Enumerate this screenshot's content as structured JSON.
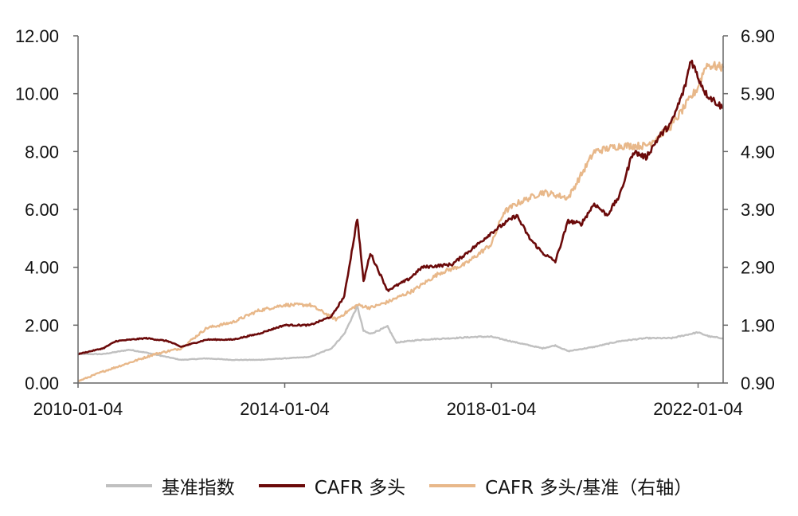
{
  "chart_data": {
    "type": "line",
    "x_range": [
      "2010-01-04",
      "2022-06-30"
    ],
    "x_ticks": [
      "2010-01-04",
      "2014-01-04",
      "2018-01-04",
      "2022-01-04"
    ],
    "y_left": {
      "ticks": [
        "0.00",
        "2.00",
        "4.00",
        "6.00",
        "8.00",
        "10.00",
        "12.00"
      ],
      "ylim": [
        0,
        12
      ]
    },
    "y_right": {
      "ticks": [
        "0.90",
        "1.90",
        "2.90",
        "3.90",
        "4.90",
        "5.90",
        "6.90"
      ],
      "ylim": [
        0.9,
        6.9
      ]
    },
    "grid": false,
    "legend_position": "bottom",
    "series": [
      {
        "name": "基准指数",
        "color": "#c0c0c0",
        "axis": "left",
        "points": [
          [
            "2010-01-04",
            1.0
          ],
          [
            "2010-07-01",
            1.0
          ],
          [
            "2011-01-01",
            1.15
          ],
          [
            "2011-05-01",
            1.05
          ],
          [
            "2012-01-01",
            0.8
          ],
          [
            "2012-07-01",
            0.85
          ],
          [
            "2013-01-01",
            0.8
          ],
          [
            "2013-07-01",
            0.8
          ],
          [
            "2014-01-01",
            0.85
          ],
          [
            "2014-07-01",
            0.9
          ],
          [
            "2014-12-01",
            1.2
          ],
          [
            "2015-03-01",
            1.7
          ],
          [
            "2015-06-01",
            2.65
          ],
          [
            "2015-07-15",
            1.8
          ],
          [
            "2015-09-01",
            1.7
          ],
          [
            "2016-01-01",
            1.95
          ],
          [
            "2016-03-01",
            1.4
          ],
          [
            "2016-09-01",
            1.5
          ],
          [
            "2017-04-01",
            1.55
          ],
          [
            "2017-10-01",
            1.6
          ],
          [
            "2018-01-04",
            1.6
          ],
          [
            "2018-07-01",
            1.4
          ],
          [
            "2018-12-31",
            1.2
          ],
          [
            "2019-04-01",
            1.3
          ],
          [
            "2019-07-01",
            1.1
          ],
          [
            "2020-01-01",
            1.25
          ],
          [
            "2020-07-01",
            1.45
          ],
          [
            "2021-01-01",
            1.55
          ],
          [
            "2021-07-01",
            1.55
          ],
          [
            "2021-12-31",
            1.75
          ],
          [
            "2022-04-01",
            1.6
          ],
          [
            "2022-06-30",
            1.55
          ]
        ]
      },
      {
        "name": "CAFR 多头",
        "color": "#6b0a0a",
        "axis": "left",
        "points": [
          [
            "2010-01-04",
            1.0
          ],
          [
            "2010-07-01",
            1.2
          ],
          [
            "2010-10-01",
            1.45
          ],
          [
            "2011-05-01",
            1.55
          ],
          [
            "2011-10-01",
            1.45
          ],
          [
            "2012-01-01",
            1.25
          ],
          [
            "2012-07-01",
            1.5
          ],
          [
            "2013-01-01",
            1.5
          ],
          [
            "2013-07-01",
            1.7
          ],
          [
            "2014-01-01",
            2.0
          ],
          [
            "2014-07-01",
            2.0
          ],
          [
            "2014-12-01",
            2.3
          ],
          [
            "2015-03-01",
            3.0
          ],
          [
            "2015-06-01",
            5.7
          ],
          [
            "2015-07-15",
            3.5
          ],
          [
            "2015-09-01",
            4.5
          ],
          [
            "2016-01-01",
            3.2
          ],
          [
            "2016-06-01",
            3.6
          ],
          [
            "2016-09-01",
            4.0
          ],
          [
            "2017-04-01",
            4.1
          ],
          [
            "2017-10-01",
            4.8
          ],
          [
            "2018-01-04",
            5.2
          ],
          [
            "2018-07-01",
            5.8
          ],
          [
            "2018-10-01",
            5.0
          ],
          [
            "2018-12-31",
            4.5
          ],
          [
            "2019-04-01",
            4.2
          ],
          [
            "2019-07-01",
            5.6
          ],
          [
            "2019-10-01",
            5.5
          ],
          [
            "2020-01-01",
            6.2
          ],
          [
            "2020-04-01",
            5.8
          ],
          [
            "2020-07-01",
            6.5
          ],
          [
            "2020-10-01",
            8.0
          ],
          [
            "2021-01-01",
            7.8
          ],
          [
            "2021-04-01",
            8.5
          ],
          [
            "2021-07-01",
            9.0
          ],
          [
            "2021-10-01",
            10.2
          ],
          [
            "2021-11-15",
            11.2
          ],
          [
            "2022-01-01",
            10.6
          ],
          [
            "2022-03-01",
            10.0
          ],
          [
            "2022-06-30",
            9.5
          ]
        ]
      },
      {
        "name": "CAFR 多头/基准（右轴）",
        "color": "#e8b88a",
        "axis": "right",
        "points": [
          [
            "2010-01-04",
            0.93
          ],
          [
            "2010-07-01",
            1.1
          ],
          [
            "2011-01-01",
            1.25
          ],
          [
            "2011-07-01",
            1.4
          ],
          [
            "2012-01-01",
            1.5
          ],
          [
            "2012-07-01",
            1.85
          ],
          [
            "2013-01-01",
            1.95
          ],
          [
            "2013-07-01",
            2.15
          ],
          [
            "2014-01-01",
            2.25
          ],
          [
            "2014-07-01",
            2.25
          ],
          [
            "2015-01-01",
            2.0
          ],
          [
            "2015-06-01",
            2.25
          ],
          [
            "2015-09-01",
            2.2
          ],
          [
            "2016-01-01",
            2.3
          ],
          [
            "2016-07-01",
            2.5
          ],
          [
            "2017-01-01",
            2.8
          ],
          [
            "2017-07-01",
            2.95
          ],
          [
            "2018-01-04",
            3.3
          ],
          [
            "2018-04-01",
            3.85
          ],
          [
            "2018-07-01",
            4.0
          ],
          [
            "2019-01-01",
            4.2
          ],
          [
            "2019-07-01",
            4.1
          ],
          [
            "2020-01-01",
            4.9
          ],
          [
            "2020-07-01",
            5.0
          ],
          [
            "2021-01-01",
            5.0
          ],
          [
            "2021-07-01",
            5.35
          ],
          [
            "2022-01-01",
            6.0
          ],
          [
            "2022-03-01",
            6.4
          ],
          [
            "2022-06-30",
            6.35
          ]
        ]
      }
    ]
  },
  "legend": {
    "items": [
      {
        "label": "基准指数",
        "color": "#c0c0c0"
      },
      {
        "label": "CAFR 多头",
        "color": "#6b0a0a"
      },
      {
        "label": "CAFR 多头/基准（右轴）",
        "color": "#e8b88a"
      }
    ]
  }
}
